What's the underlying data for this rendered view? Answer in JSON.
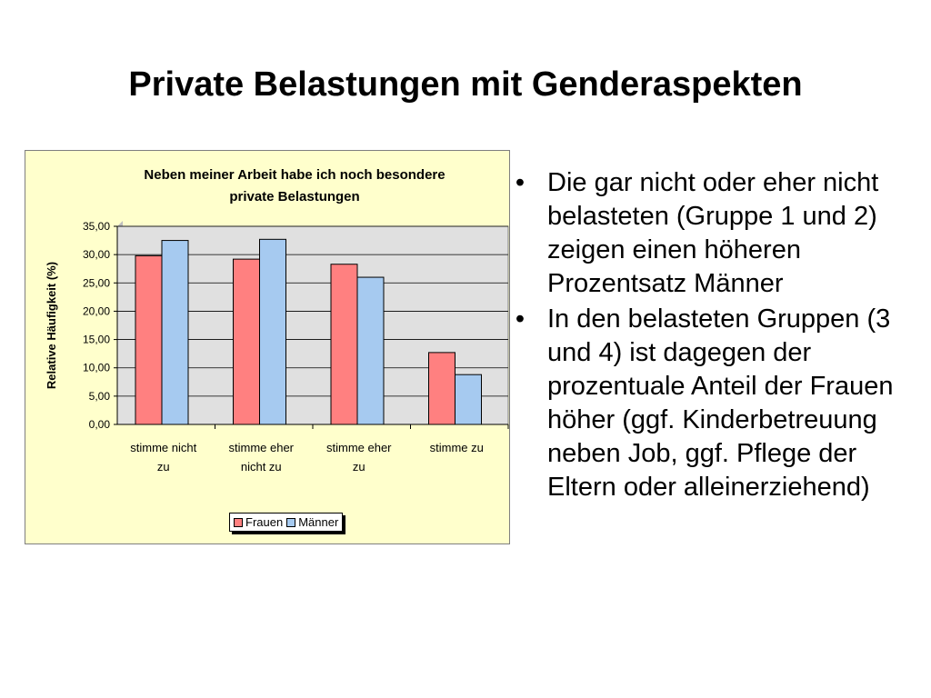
{
  "slide": {
    "title": "Private Belastungen mit Genderaspekten"
  },
  "bullets": [
    "Die gar nicht oder eher nicht belasteten (Gruppe 1 und 2) zeigen einen höheren Prozentsatz Männer",
    "In den belasteten Gruppen (3 und 4) ist dagegen der prozentuale Anteil der Frauen höher (ggf. Kinderbetreuung neben Job, ggf. Pflege der Eltern oder alleinerziehend)"
  ],
  "bullet_symbol": "•",
  "chart_data": {
    "type": "bar",
    "title_lines": [
      "Neben meiner Arbeit habe ich noch besondere",
      "private Belastungen"
    ],
    "ylabel": "Relative Häufigkeit (%)",
    "xlabel": "",
    "categories": [
      [
        "stimme nicht",
        "zu"
      ],
      [
        "stimme eher",
        "nicht zu"
      ],
      [
        "stimme eher",
        "zu"
      ],
      [
        "stimme zu"
      ]
    ],
    "series": [
      {
        "name": "Frauen",
        "color": "#ff8080",
        "values": [
          29.8,
          29.2,
          28.3,
          12.7
        ]
      },
      {
        "name": "Männer",
        "color": "#a6caf0",
        "values": [
          32.5,
          32.7,
          26.0,
          8.8
        ]
      }
    ],
    "ylim": [
      0,
      35
    ],
    "yticks": [
      "0,00",
      "5,00",
      "10,00",
      "15,00",
      "20,00",
      "25,00",
      "30,00",
      "35,00"
    ],
    "ytick_values": [
      0,
      5,
      10,
      15,
      20,
      25,
      30,
      35
    ],
    "grid": true,
    "legend": "bottom",
    "colors": {
      "plot_background": "#e0e0e0",
      "chart_background": "#ffffcc",
      "title": "#000000"
    }
  }
}
